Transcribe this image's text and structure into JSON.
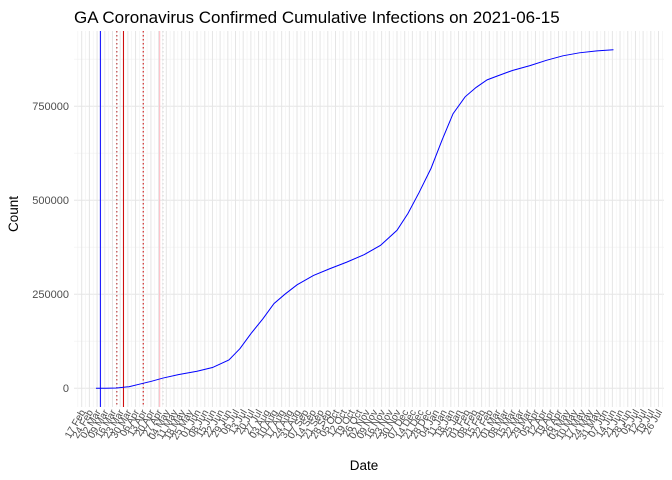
{
  "chart_data": {
    "type": "line",
    "title": "GA Coronavirus Confirmed Cumulative Infections on 2021-06-15",
    "xlabel": "Date",
    "ylabel": "Count",
    "ylim": [
      -50000,
      950000
    ],
    "xlim": [
      "2020-02-10",
      "2021-07-31"
    ],
    "y_ticks": [
      0,
      250000,
      500000,
      750000
    ],
    "y_tick_labels": [
      "0",
      "250000",
      "500000",
      "750000"
    ],
    "x_tick_labels": [
      "17 Feb",
      "24 Feb",
      "02 Mar",
      "09 Mar",
      "16 Mar",
      "23 Mar",
      "30 Mar",
      "06 Apr",
      "13 Apr",
      "20 Apr",
      "27 Apr",
      "04 May",
      "11 May",
      "18 May",
      "25 May",
      "01 Jun",
      "08 Jun",
      "15 Jun",
      "22 Jun",
      "29 Jun",
      "06 Jul",
      "13 Jul",
      "20 Jul",
      "27 Jul",
      "03 Aug",
      "10 Aug",
      "17 Aug",
      "24 Aug",
      "31 Aug",
      "07 Sep",
      "14 Sep",
      "21 Sep",
      "28 Sep",
      "05 Oct",
      "12 Oct",
      "19 Oct",
      "26 Oct",
      "02 Nov",
      "09 Nov",
      "16 Nov",
      "23 Nov",
      "30 Nov",
      "07 Dec",
      "14 Dec",
      "21 Dec",
      "28 Dec",
      "04 Jan",
      "11 Jan",
      "18 Jan",
      "25 Jan",
      "01 Feb",
      "08 Feb",
      "15 Feb",
      "22 Feb",
      "01 Mar",
      "08 Mar",
      "15 Mar",
      "22 Mar",
      "29 Mar",
      "05 Apr",
      "12 Apr",
      "19 Apr",
      "26 Apr",
      "03 May",
      "10 May",
      "17 May",
      "24 May",
      "31 May",
      "07 Jun",
      "14 Jun",
      "21 Jun",
      "28 Jun",
      "05 Jul",
      "12 Jul",
      "19 Jul",
      "26 Jul"
    ],
    "grid": true,
    "legend": "none",
    "series": [
      {
        "color": "#0000ff",
        "points": [
          [
            "2020-03-01",
            0
          ],
          [
            "2020-03-10",
            20
          ],
          [
            "2020-03-20",
            500
          ],
          [
            "2020-03-31",
            4000
          ],
          [
            "2020-04-10",
            11000
          ],
          [
            "2020-04-20",
            18000
          ],
          [
            "2020-05-01",
            27000
          ],
          [
            "2020-05-15",
            36000
          ],
          [
            "2020-06-01",
            45000
          ],
          [
            "2020-06-15",
            55000
          ],
          [
            "2020-06-30",
            75000
          ],
          [
            "2020-07-10",
            105000
          ],
          [
            "2020-07-20",
            145000
          ],
          [
            "2020-07-31",
            185000
          ],
          [
            "2020-08-10",
            225000
          ],
          [
            "2020-08-20",
            250000
          ],
          [
            "2020-08-31",
            275000
          ],
          [
            "2020-09-15",
            300000
          ],
          [
            "2020-09-30",
            318000
          ],
          [
            "2020-10-15",
            335000
          ],
          [
            "2020-10-31",
            355000
          ],
          [
            "2020-11-15",
            380000
          ],
          [
            "2020-11-30",
            420000
          ],
          [
            "2020-12-10",
            465000
          ],
          [
            "2020-12-20",
            520000
          ],
          [
            "2020-12-31",
            585000
          ],
          [
            "2021-01-10",
            660000
          ],
          [
            "2021-01-20",
            730000
          ],
          [
            "2021-01-31",
            775000
          ],
          [
            "2021-02-10",
            800000
          ],
          [
            "2021-02-20",
            820000
          ],
          [
            "2021-03-01",
            830000
          ],
          [
            "2021-03-15",
            845000
          ],
          [
            "2021-03-31",
            858000
          ],
          [
            "2021-04-15",
            872000
          ],
          [
            "2021-04-30",
            884000
          ],
          [
            "2021-05-15",
            892000
          ],
          [
            "2021-05-31",
            897000
          ],
          [
            "2021-06-15",
            900000
          ]
        ]
      }
    ],
    "reference_lines": [
      {
        "date": "2020-03-05",
        "color": "#0000ff",
        "style": "solid"
      },
      {
        "date": "2020-03-20",
        "color": "#b22222",
        "style": "dotted"
      },
      {
        "date": "2020-03-26",
        "color": "#cd0000",
        "style": "solid"
      },
      {
        "date": "2020-04-13",
        "color": "#cd0000",
        "style": "dotted"
      },
      {
        "date": "2020-04-28",
        "color": "#ffb6c1",
        "style": "solid"
      },
      {
        "date": "2020-05-01",
        "color": "#d3d3d3",
        "style": "dotted"
      }
    ]
  }
}
